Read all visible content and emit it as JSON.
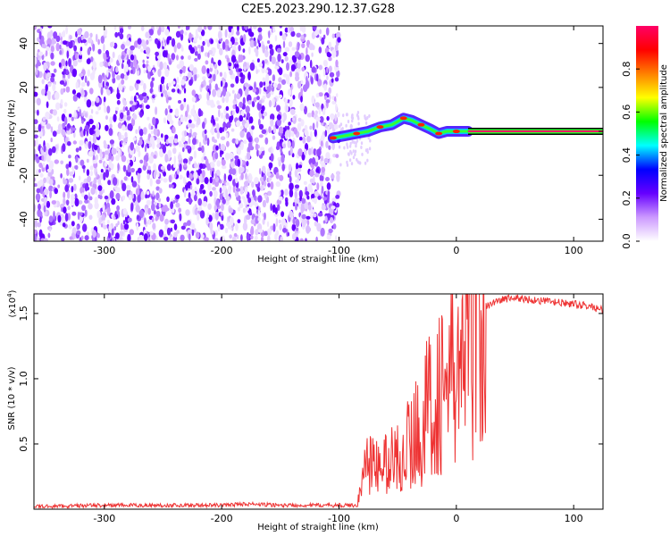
{
  "title": "C2E5.2023.290.12.37.G28",
  "chart_data": [
    {
      "type": "heatmap",
      "xlabel": "Height of straight line (km)",
      "ylabel": "Frequency (Hz)",
      "xlim": [
        -360,
        125
      ],
      "ylim": [
        -50,
        48
      ],
      "x_ticks": [
        "-300",
        "-200",
        "-100",
        "0",
        "100"
      ],
      "y_ticks": [
        "-40",
        "-20",
        "0",
        "20",
        "40"
      ],
      "noise_region_x": [
        -360,
        -100
      ],
      "signal_track": {
        "x": [
          -105,
          -95,
          -85,
          -75,
          -65,
          -55,
          -45,
          -38,
          -30,
          -22,
          -15,
          -8,
          0,
          10
        ],
        "y": [
          -3,
          -2,
          -1,
          0,
          2,
          3,
          6,
          5,
          3,
          1,
          -1,
          0,
          0,
          0
        ]
      },
      "tone_line": {
        "x": [
          10,
          125
        ],
        "y": 0
      },
      "colorbar": {
        "label": "Normalized spectral amplitude",
        "ticks": [
          "0.0",
          "0.2",
          "0.4",
          "0.6",
          "0.8"
        ],
        "colors": [
          "#ffffff",
          "#cc99ff",
          "#6600ff",
          "#0000ff",
          "#00ffff",
          "#00ff00",
          "#ffff00",
          "#ff8000",
          "#ff0000",
          "#ff0066"
        ]
      },
      "grid": false
    },
    {
      "type": "line",
      "xlabel": "Height of straight line (km)",
      "ylabel": "SNR (10 * v/v)",
      "scale_label": "(x10",
      "scale_exp": "4",
      "scale_close": ")",
      "xlim": [
        -360,
        125
      ],
      "ylim": [
        0,
        1.65
      ],
      "x_ticks": [
        "-300",
        "-200",
        "-100",
        "0",
        "100"
      ],
      "y_ticks": [
        "0.5",
        "1.0",
        "1.5"
      ],
      "series": [
        {
          "color": "#ee3333",
          "x": [
            -360,
            -300,
            -250,
            -200,
            -180,
            -150,
            -100,
            -85,
            -80,
            -75,
            -70,
            -60,
            -50,
            -40,
            -30,
            -20,
            -10,
            0,
            5,
            10,
            15,
            20,
            30,
            40,
            50,
            60,
            70,
            80,
            90,
            100,
            110,
            120,
            125
          ],
          "y": [
            0.02,
            0.03,
            0.03,
            0.03,
            0.04,
            0.03,
            0.03,
            0.03,
            0.2,
            0.45,
            0.3,
            0.35,
            0.4,
            0.5,
            0.65,
            0.85,
            0.95,
            1.05,
            1.1,
            1.3,
            1.45,
            1.52,
            1.58,
            1.61,
            1.62,
            1.61,
            1.6,
            1.59,
            1.58,
            1.57,
            1.56,
            1.54,
            1.52
          ]
        }
      ],
      "grid": false
    }
  ]
}
